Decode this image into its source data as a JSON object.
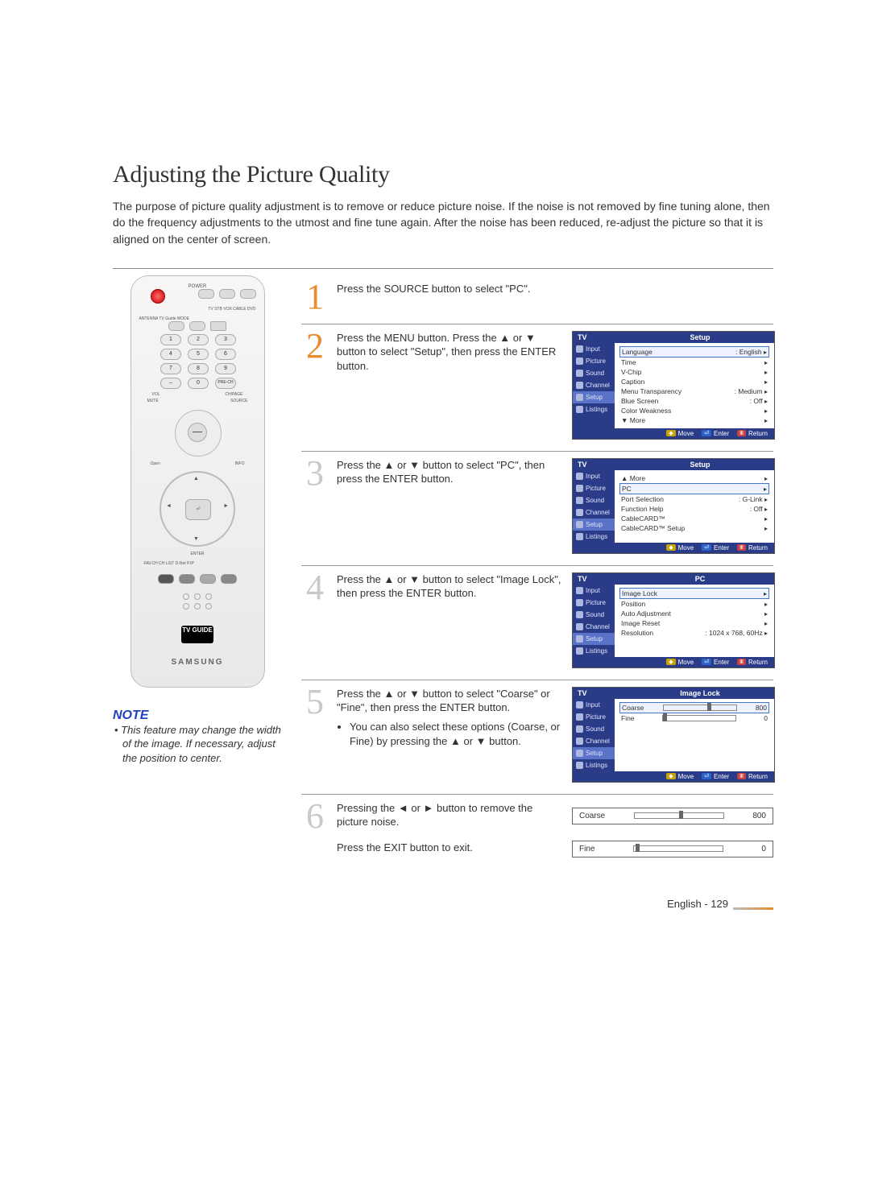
{
  "page": {
    "title": "Adjusting the Picture Quality",
    "intro": "The purpose of picture quality adjustment is to remove or reduce picture noise. If the noise is not removed by fine tuning alone, then do the frequency adjustments to the utmost and fine tune again. After the noise has been reduced, re-adjust the picture so that it is aligned on the center of screen.",
    "footer": "English - 129"
  },
  "note": {
    "heading": "NOTE",
    "bullet": "• This feature may change the width of the image. If necessary, adjust the position to center."
  },
  "remote": {
    "powerLabel": "POWER",
    "modeLabels": "TV  STB  VCR  CABLE  DVD",
    "rowLabels": "ANTENNA   TV Guide   MODE",
    "preCh": "PRE-CH",
    "vol": "VOL",
    "chpage": "CH/PAGE",
    "mute": "MUTE",
    "source": "SOURCE",
    "open": "Open",
    "info": "INFO",
    "enter": "ENTER",
    "bottomRow": "FAV.CH   CH LIST   D-Net   P.IP",
    "tvguide": "TV GUIDE",
    "brand": "SAMSUNG",
    "nums": [
      "1",
      "2",
      "3",
      "4",
      "5",
      "6",
      "7",
      "8",
      "9",
      "–",
      "0"
    ]
  },
  "steps": {
    "s1": {
      "num": "1",
      "text": "Press the SOURCE button to select \"PC\"."
    },
    "s2": {
      "num": "2",
      "text": "Press the MENU button. Press the ▲ or ▼ button to select \"Setup\", then press the ENTER button."
    },
    "s3": {
      "num": "3",
      "text": "Press the ▲ or ▼ button to select \"PC\", then press the ENTER button."
    },
    "s4": {
      "num": "4",
      "text": "Press the ▲ or ▼ button to select \"Image Lock\", then press the ENTER button."
    },
    "s5": {
      "num": "5",
      "text": "Press the ▲ or ▼ button to select \"Coarse\" or \"Fine\", then press the ENTER button.",
      "bullet": "You can also select these options (Coarse, or Fine) by pressing the ▲ or ▼ button."
    },
    "s6": {
      "num": "6",
      "text": "Pressing the ◄ or ► button to remove the picture noise.",
      "exit": "Press the EXIT button to exit."
    }
  },
  "osd": {
    "sideItems": [
      "Input",
      "Picture",
      "Sound",
      "Channel",
      "Setup",
      "Listings"
    ],
    "navMove": "Move",
    "navEnter": "Enter",
    "navReturn": "Return",
    "diamond": "◆"
  },
  "osd2": {
    "tv": "TV",
    "title": "Setup",
    "rows": [
      [
        "Language",
        ": English"
      ],
      [
        "Time",
        ""
      ],
      [
        "V-Chip",
        ""
      ],
      [
        "Caption",
        ""
      ],
      [
        "Menu Transparency",
        ": Medium"
      ],
      [
        "Blue Screen",
        ": Off"
      ],
      [
        "Color Weakness",
        ""
      ],
      [
        "▼ More",
        ""
      ]
    ],
    "highlight": 0,
    "activeSide": 4
  },
  "osd3": {
    "tv": "TV",
    "title": "Setup",
    "rows": [
      [
        "▲ More",
        ""
      ],
      [
        "PC",
        ""
      ],
      [
        "Port Selection",
        ": G-Link"
      ],
      [
        "Function Help",
        ": Off"
      ],
      [
        "CableCARD™",
        ""
      ],
      [
        "CableCARD™ Setup",
        ""
      ]
    ],
    "highlight": 1,
    "activeSide": 4
  },
  "osd4": {
    "tv": "TV",
    "title": "PC",
    "rows": [
      [
        "Image Lock",
        ""
      ],
      [
        "Position",
        ""
      ],
      [
        "Auto Adjustment",
        ""
      ],
      [
        "Image Reset",
        ""
      ],
      [
        "Resolution",
        ": 1024 x 768, 60Hz"
      ]
    ],
    "highlight": 0,
    "activeSide": 4
  },
  "osd5": {
    "tv": "TV",
    "title": "Image Lock",
    "coarseLabel": "Coarse",
    "coarseVal": "800",
    "coarsePct": 60,
    "fineLabel": "Fine",
    "fineVal": "0",
    "finePct": 0,
    "activeSide": 4
  },
  "bar6a": {
    "label": "Coarse",
    "value": "800",
    "pct": 50
  },
  "bar6b": {
    "label": "Fine",
    "value": "0",
    "pct": 2
  }
}
